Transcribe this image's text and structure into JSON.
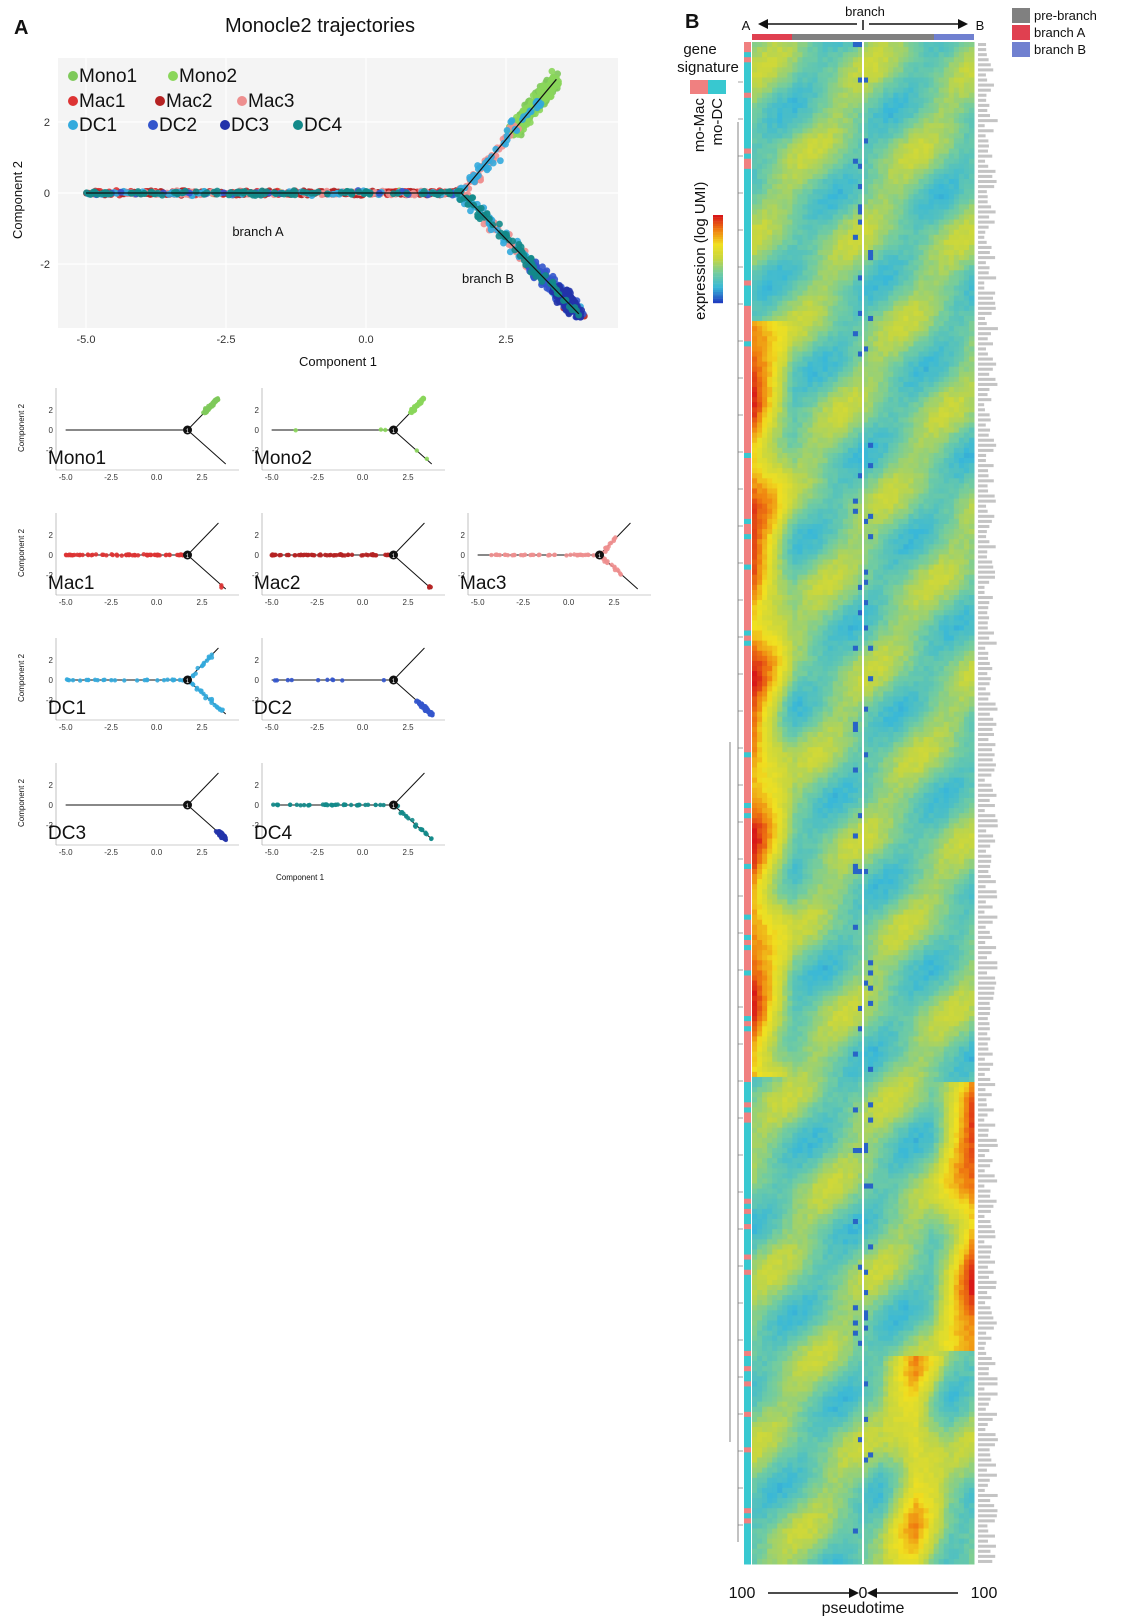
{
  "panel_a": {
    "letter": "A",
    "title": "Monocle2 trajectories",
    "branch_a_label": "branch A",
    "branch_b_label": "branch B",
    "x_title": "Component 1",
    "y_title": "Component 2",
    "x_ticks": [
      "-5.0",
      "-2.5",
      "0.0",
      "2.5"
    ],
    "y_ticks": [
      "2",
      "0",
      "-2"
    ],
    "root_node": "1",
    "legend": [
      {
        "label": "Mono1",
        "color": "#7ec95a"
      },
      {
        "label": "Mono2",
        "color": "#8ad65a"
      },
      {
        "label": "Mac1",
        "color": "#dd3333"
      },
      {
        "label": "Mac2",
        "color": "#b52222"
      },
      {
        "label": "Mac3",
        "color": "#ee8f8f"
      },
      {
        "label": "DC1",
        "color": "#33aadd"
      },
      {
        "label": "DC2",
        "color": "#3355cc"
      },
      {
        "label": "DC3",
        "color": "#2233aa"
      },
      {
        "label": "DC4",
        "color": "#138a8a"
      }
    ]
  },
  "chart_data": [
    {
      "type": "scatter",
      "title": "Monocle2 trajectories",
      "xlabel": "Component 1",
      "ylabel": "Component 2",
      "xlim": [
        -5.5,
        4.5
      ],
      "ylim": [
        -3.8,
        3.8
      ],
      "trajectory": {
        "root": [
          1.7,
          0.0
        ],
        "stem_start": [
          -5.0,
          0.0
        ],
        "branch_up_end": [
          3.4,
          3.2
        ],
        "branch_down_end": [
          3.8,
          -3.4
        ]
      },
      "series": [
        {
          "name": "Mono1",
          "segments": [
            {
              "arm": "up",
              "from": 0.55,
              "to": 1.0,
              "fraction": 1.0
            }
          ]
        },
        {
          "name": "Mono2",
          "segments": [
            {
              "arm": "up",
              "from": 0.55,
              "to": 1.0,
              "fraction": 0.93
            },
            {
              "arm": "stem",
              "from": 0.0,
              "to": 1.0,
              "fraction": 0.04
            },
            {
              "arm": "down",
              "from": 0.6,
              "to": 1.0,
              "fraction": 0.03
            }
          ]
        },
        {
          "name": "Mac1",
          "segments": [
            {
              "arm": "stem",
              "from": 0.0,
              "to": 1.0,
              "fraction": 0.97
            },
            {
              "arm": "down",
              "from": 0.85,
              "to": 1.0,
              "fraction": 0.03
            }
          ]
        },
        {
          "name": "Mac2",
          "segments": [
            {
              "arm": "stem",
              "from": 0.0,
              "to": 1.0,
              "fraction": 0.94
            },
            {
              "arm": "down",
              "from": 0.88,
              "to": 1.0,
              "fraction": 0.06
            }
          ]
        },
        {
          "name": "Mac3",
          "segments": [
            {
              "arm": "stem",
              "from": 0.1,
              "to": 1.0,
              "fraction": 0.55
            },
            {
              "arm": "up",
              "from": 0.0,
              "to": 0.6,
              "fraction": 0.2
            },
            {
              "arm": "down",
              "from": 0.0,
              "to": 0.6,
              "fraction": 0.25
            }
          ]
        },
        {
          "name": "DC1",
          "segments": [
            {
              "arm": "stem",
              "from": 0.0,
              "to": 1.0,
              "fraction": 0.4
            },
            {
              "arm": "up",
              "from": 0.0,
              "to": 0.85,
              "fraction": 0.25
            },
            {
              "arm": "down",
              "from": 0.0,
              "to": 1.0,
              "fraction": 0.35
            }
          ]
        },
        {
          "name": "DC2",
          "segments": [
            {
              "arm": "down",
              "from": 0.6,
              "to": 1.0,
              "fraction": 0.85
            },
            {
              "arm": "stem",
              "from": 0.0,
              "to": 1.0,
              "fraction": 0.15
            }
          ]
        },
        {
          "name": "DC3",
          "segments": [
            {
              "arm": "down",
              "from": 0.8,
              "to": 1.0,
              "fraction": 1.0
            }
          ]
        },
        {
          "name": "DC4",
          "segments": [
            {
              "arm": "stem",
              "from": 0.0,
              "to": 1.0,
              "fraction": 0.6
            },
            {
              "arm": "down",
              "from": 0.0,
              "to": 1.0,
              "fraction": 0.4
            }
          ]
        }
      ]
    },
    {
      "type": "heatmap",
      "title": "",
      "xlabel": "pseudotime",
      "x_ticks": [
        "100",
        "0",
        "100"
      ],
      "top_axis": {
        "label": "branch",
        "left": "A",
        "right": "B"
      },
      "color_scale_label": "expression (log UMI)",
      "color_scale": [
        "#2040c0",
        "#39b8d8",
        "#72cca0",
        "#c6d640",
        "#f0e020",
        "#f08010",
        "#d81818"
      ],
      "gene_signature_label": "gene signature",
      "gene_signature": [
        {
          "label": "mo-Mac",
          "color": "#f08080"
        },
        {
          "label": "mo-DC",
          "color": "#38c8d0"
        }
      ],
      "branch_legend": [
        {
          "label": "pre-branch",
          "color": "#808080"
        },
        {
          "label": "branch A",
          "color": "#e04050"
        },
        {
          "label": "branch B",
          "color": "#7080d0"
        }
      ]
    }
  ]
}
